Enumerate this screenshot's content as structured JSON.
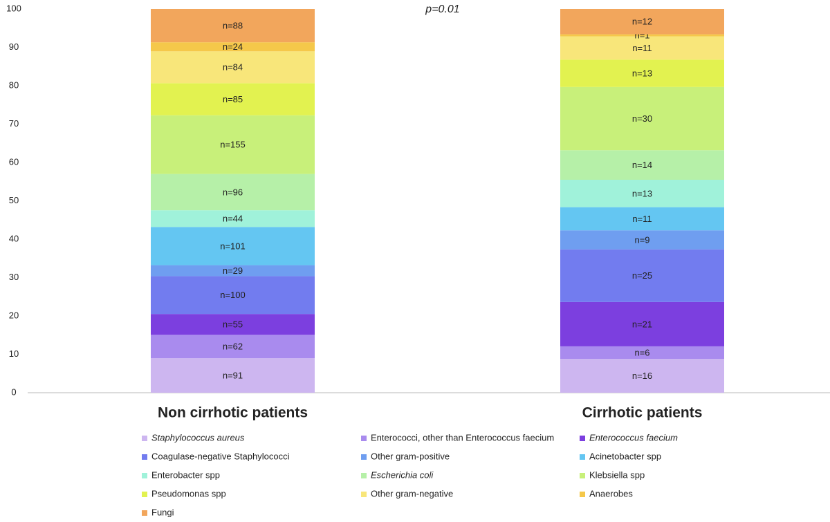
{
  "chart_data": {
    "type": "bar",
    "stack": "percent",
    "annotation": "p=0.01",
    "categories": [
      "Non cirrhotic patients",
      "Cirrhotic patients"
    ],
    "ylim": [
      0,
      100
    ],
    "yticks": [
      0,
      10,
      20,
      30,
      40,
      50,
      60,
      70,
      80,
      90,
      100
    ],
    "series": [
      {
        "name": "Staphylococcus aureus",
        "italic": true,
        "color": "#cdb6f0",
        "values": [
          91,
          16
        ],
        "value_labels": [
          "n=91",
          "n=16"
        ]
      },
      {
        "name": "Enterococci, other than Enterococcus faecium",
        "color": "#a98bee",
        "values": [
          62,
          6
        ],
        "value_labels": [
          "n=62",
          "n=6"
        ]
      },
      {
        "name": "Enterococcus faecium",
        "italic": true,
        "color": "#7c3fdf",
        "values": [
          55,
          21
        ],
        "value_labels": [
          "n=55",
          "n=21"
        ]
      },
      {
        "name": "Coagulase-negative Staphylococci",
        "color": "#727cef",
        "values": [
          100,
          25
        ],
        "value_labels": [
          "n=100",
          "n=25"
        ]
      },
      {
        "name": "Other gram-positive",
        "color": "#6f9ef0",
        "values": [
          29,
          9
        ],
        "value_labels": [
          "n=29",
          "n=9"
        ]
      },
      {
        "name": "Acinetobacter spp",
        "color": "#64c6f2",
        "values": [
          101,
          11
        ],
        "value_labels": [
          "n=101",
          "n=11"
        ]
      },
      {
        "name": "Enterobacter spp",
        "color": "#a0f2da",
        "values": [
          44,
          13
        ],
        "value_labels": [
          "n=44",
          "n=13"
        ]
      },
      {
        "name": "Escherichia coli",
        "italic": true,
        "color": "#b6f0a8",
        "values": [
          96,
          14
        ],
        "value_labels": [
          "n=96",
          "n=14"
        ]
      },
      {
        "name": "Klebsiella spp",
        "color": "#c8f07a",
        "values": [
          155,
          30
        ],
        "value_labels": [
          "n=155",
          "n=30"
        ]
      },
      {
        "name": "Pseudomonas spp",
        "color": "#e2f250",
        "values": [
          85,
          13
        ],
        "value_labels": [
          "n=85",
          "n=13"
        ]
      },
      {
        "name": "Other gram-negative",
        "color": "#f8e67a",
        "values": [
          84,
          11
        ],
        "value_labels": [
          "n=84",
          "n=11"
        ]
      },
      {
        "name": "Anaerobes",
        "color": "#f5c84a",
        "values": [
          24,
          1
        ],
        "value_labels": [
          "n=24",
          "n=1"
        ]
      },
      {
        "name": "Fungi",
        "color": "#f2a65c",
        "values": [
          88,
          12
        ],
        "value_labels": [
          "n=88",
          "n=12"
        ]
      }
    ]
  }
}
